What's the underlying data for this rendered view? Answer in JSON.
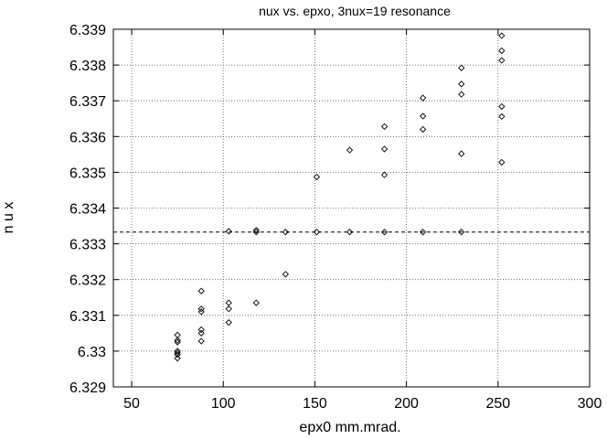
{
  "chart_data": {
    "type": "scatter",
    "title": "nux vs.  epxo, 3nux=19 resonance",
    "xlabel": "epx0  mm.mrad.",
    "ylabel": "n u x",
    "xlim": [
      40,
      300
    ],
    "ylim": [
      6.329,
      6.339
    ],
    "x_ticks": [
      "50",
      "100",
      "150",
      "200",
      "250",
      "300"
    ],
    "y_ticks": [
      "6.329",
      "6.33",
      "6.331",
      "6.332",
      "6.333",
      "6.334",
      "6.335",
      "6.336",
      "6.337",
      "6.338",
      "6.339"
    ],
    "grid": true,
    "reference_line_y": 6.33333,
    "marker": "diamond",
    "points": [
      {
        "x": 75,
        "y": 6.33045
      },
      {
        "x": 75,
        "y": 6.3303
      },
      {
        "x": 75,
        "y": 6.33025
      },
      {
        "x": 75,
        "y": 6.33
      },
      {
        "x": 75,
        "y": 6.32995
      },
      {
        "x": 75,
        "y": 6.3299
      },
      {
        "x": 75,
        "y": 6.3298
      },
      {
        "x": 88,
        "y": 6.33168
      },
      {
        "x": 88,
        "y": 6.33118
      },
      {
        "x": 88,
        "y": 6.3311
      },
      {
        "x": 88,
        "y": 6.3306
      },
      {
        "x": 88,
        "y": 6.3305
      },
      {
        "x": 88,
        "y": 6.33028
      },
      {
        "x": 103,
        "y": 6.33335
      },
      {
        "x": 103,
        "y": 6.33135
      },
      {
        "x": 103,
        "y": 6.33118
      },
      {
        "x": 103,
        "y": 6.3308
      },
      {
        "x": 118,
        "y": 6.33338
      },
      {
        "x": 118,
        "y": 6.33333
      },
      {
        "x": 118,
        "y": 6.33135
      },
      {
        "x": 134,
        "y": 6.33333
      },
      {
        "x": 134,
        "y": 6.33215
      },
      {
        "x": 151,
        "y": 6.33487
      },
      {
        "x": 151,
        "y": 6.33333
      },
      {
        "x": 169,
        "y": 6.33562
      },
      {
        "x": 169,
        "y": 6.33333
      },
      {
        "x": 188,
        "y": 6.33628
      },
      {
        "x": 188,
        "y": 6.33565
      },
      {
        "x": 188,
        "y": 6.33493
      },
      {
        "x": 188,
        "y": 6.33333
      },
      {
        "x": 209,
        "y": 6.33708
      },
      {
        "x": 209,
        "y": 6.33657
      },
      {
        "x": 209,
        "y": 6.3362
      },
      {
        "x": 209,
        "y": 6.33333
      },
      {
        "x": 230,
        "y": 6.33792
      },
      {
        "x": 230,
        "y": 6.33747
      },
      {
        "x": 230,
        "y": 6.33718
      },
      {
        "x": 230,
        "y": 6.33552
      },
      {
        "x": 230,
        "y": 6.33333
      },
      {
        "x": 252,
        "y": 6.33882
      },
      {
        "x": 252,
        "y": 6.3384
      },
      {
        "x": 252,
        "y": 6.33813
      },
      {
        "x": 252,
        "y": 6.33684
      },
      {
        "x": 252,
        "y": 6.33656
      },
      {
        "x": 252,
        "y": 6.33528
      }
    ]
  }
}
